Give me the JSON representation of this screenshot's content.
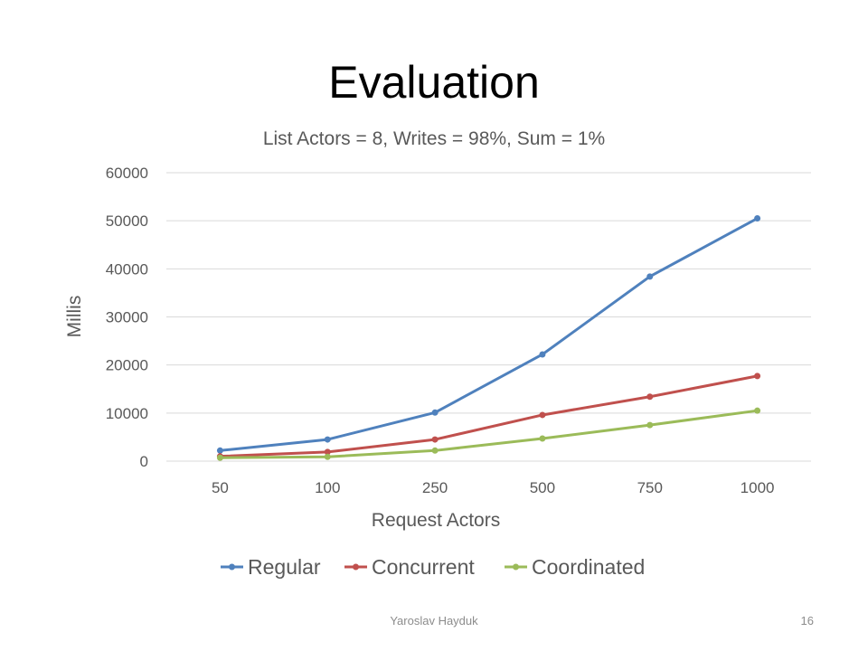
{
  "slide": {
    "title": "Evaluation",
    "footer_author": "Yaroslav Hayduk",
    "page_number": "16"
  },
  "chart_data": {
    "type": "line",
    "title": "List Actors = 8, Writes = 98%, Sum = 1%",
    "xlabel": "Request Actors",
    "ylabel": "Millis",
    "categories": [
      "50",
      "100",
      "250",
      "500",
      "750",
      "1000"
    ],
    "ylim": [
      0,
      60000
    ],
    "yticks": [
      0,
      10000,
      20000,
      30000,
      40000,
      50000,
      60000
    ],
    "grid": true,
    "legend_position": "bottom",
    "series": [
      {
        "name": "Regular",
        "color": "#4f81bd",
        "values": [
          2200,
          4500,
          10100,
          22200,
          38400,
          50500
        ]
      },
      {
        "name": "Concurrent",
        "color": "#c0504d",
        "values": [
          1000,
          1900,
          4500,
          9600,
          13400,
          17700
        ]
      },
      {
        "name": "Coordinated",
        "color": "#9bbb59",
        "values": [
          700,
          900,
          2200,
          4700,
          7500,
          10500
        ]
      }
    ]
  }
}
